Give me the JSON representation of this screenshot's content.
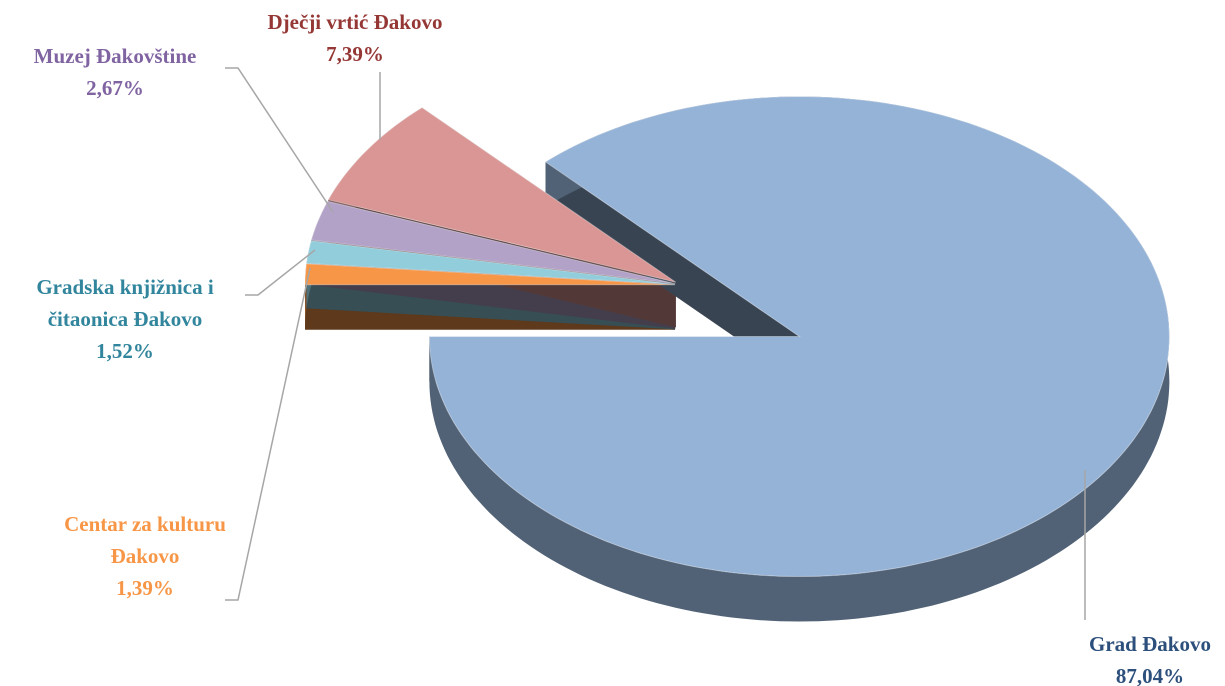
{
  "chart_data": {
    "type": "pie",
    "categories": [
      "Centar za kulturu Đakovo",
      "Gradska knjižnica i čitaonica Đakovo",
      "Muzej Đakovštine",
      "Dječji vrtić Đakovo",
      "Grad Đakovo"
    ],
    "values": [
      1.39,
      1.52,
      2.67,
      7.39,
      87.04
    ],
    "value_labels": [
      "1,39%",
      "1,52%",
      "2,67%",
      "7,39%",
      "87,04%"
    ],
    "colors": [
      "#f79646",
      "#92cddc",
      "#b3a2c7",
      "#d99694",
      "#95b3d7"
    ],
    "label_colors": [
      "#f79646",
      "#31859c",
      "#8064a2",
      "#953735",
      "#2c4f7c"
    ]
  }
}
